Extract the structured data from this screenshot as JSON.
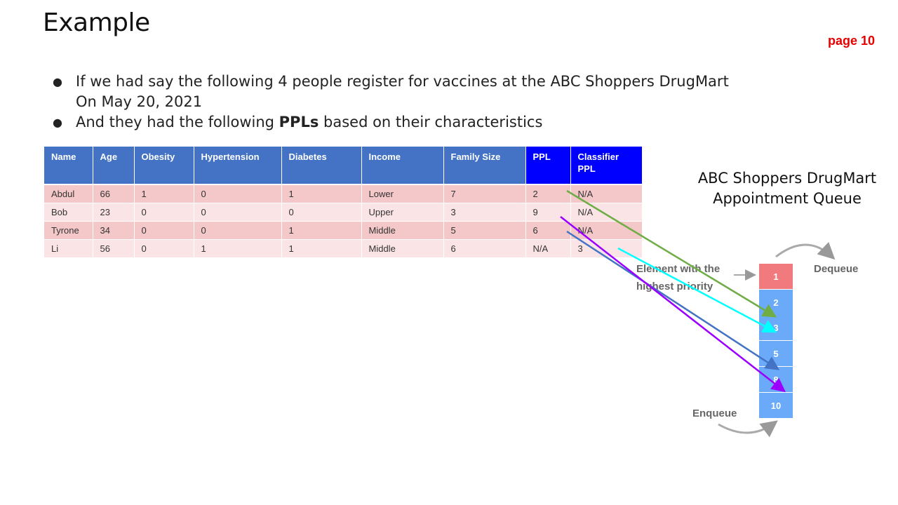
{
  "slide": {
    "title": "Example",
    "page_label": "page 10"
  },
  "bullets": [
    {
      "text": "If we had say the following 4 people register for vaccines at the ABC Shoppers DrugMart On May 20, 2021"
    },
    {
      "pre": "And they had the following ",
      "bold": "PPLs",
      "post": " based on their characteristics"
    }
  ],
  "table": {
    "headers": [
      "Name",
      "Age",
      "Obesity",
      "Hypertension",
      "Diabetes",
      "Income",
      "Family Size",
      "PPL",
      "Classifier PPL"
    ],
    "rows": [
      [
        "Abdul",
        "66",
        "1",
        "0",
        "1",
        "Lower",
        "7",
        "2",
        "N/A"
      ],
      [
        "Bob",
        "23",
        "0",
        "0",
        "0",
        "Upper",
        "3",
        "9",
        "N/A"
      ],
      [
        "Tyrone",
        "34",
        "0",
        "0",
        "1",
        "Middle",
        "5",
        "6",
        "N/A"
      ],
      [
        "Li",
        "56",
        "0",
        "1",
        "1",
        "Middle",
        "6",
        "N/A",
        "3"
      ]
    ]
  },
  "queue": {
    "title": "ABC Shoppers DrugMart Appointment Queue",
    "dequeue_label": "Dequeue",
    "enqueue_label": "Enqueue",
    "highest_priority_label": "Element with the highest priority",
    "cells": [
      "1",
      "2",
      "3",
      "5",
      "8",
      "10"
    ]
  },
  "colors": {
    "header_blue": "#4472c4",
    "highlight_blue": "#0000ff",
    "row_odd": "#f4c7c9",
    "row_even": "#fae4e5",
    "page_red": "#e60000",
    "queue_blue": "#6aaaf8",
    "queue_top": "#f07a7e",
    "arrow_green": "#70ad47",
    "arrow_cyan": "#00ffff",
    "arrow_steel": "#4472c4",
    "arrow_purple": "#9b00ff"
  }
}
